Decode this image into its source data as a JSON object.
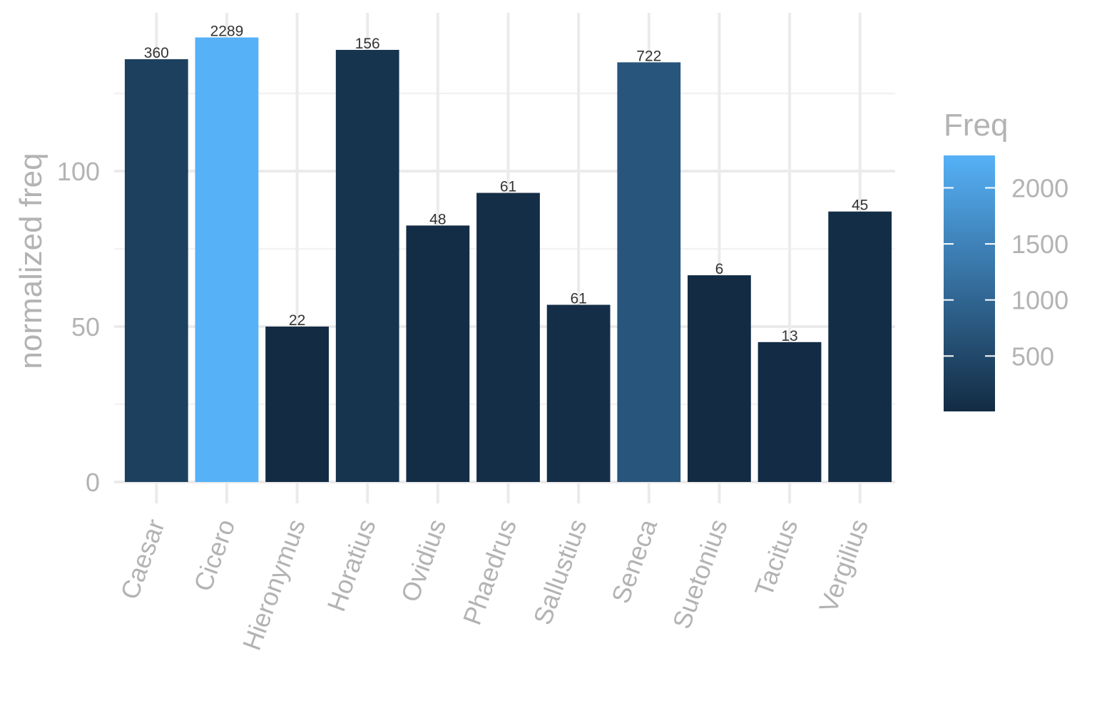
{
  "chart_data": {
    "type": "bar",
    "ylabel": "normalized freq",
    "xlabel": "",
    "ylim": [
      0,
      142
    ],
    "yticks": [
      0,
      50,
      100
    ],
    "y_minor_ticks": [
      25,
      75,
      125
    ],
    "categories": [
      "Caesar",
      "Cicero",
      "Hieronymus",
      "Horatius",
      "Ovidius",
      "Phaedrus",
      "Sallustius",
      "Seneca",
      "Suetonius",
      "Tacitus",
      "Vergilius"
    ],
    "values": [
      136,
      143,
      50,
      139,
      82.5,
      93,
      57,
      135,
      66.5,
      45,
      87
    ],
    "bar_labels": [
      "360",
      "2289",
      "22",
      "156",
      "48",
      "61",
      "61",
      "722",
      "6",
      "13",
      "45"
    ],
    "fill_values": [
      360,
      2289,
      22,
      156,
      48,
      61,
      61,
      722,
      6,
      13,
      45
    ],
    "legend": {
      "title": "Freq",
      "placement": "right",
      "ticks": [
        500,
        1000,
        1500,
        2000
      ],
      "tick_labels": [
        "500",
        "1000",
        "1500",
        "2000"
      ],
      "range": [
        6,
        2289
      ],
      "color_low": "#132B43",
      "color_high": "#56B1F7"
    },
    "grid": true
  }
}
